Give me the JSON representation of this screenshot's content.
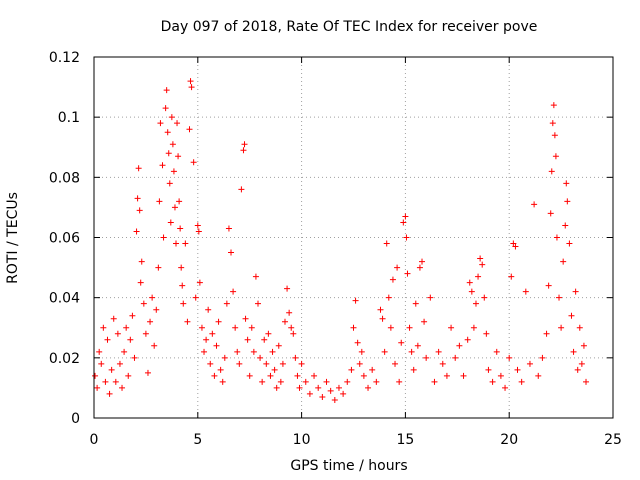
{
  "chart_data": {
    "type": "scatter",
    "title": "Day 097 of 2018, Rate Of TEC Index for receiver pove",
    "xlabel": "GPS time / hours",
    "ylabel": "ROTI / TECUs",
    "xlim": [
      0,
      25
    ],
    "ylim": [
      0,
      0.12
    ],
    "xticks": [
      "0",
      "5",
      "10",
      "15",
      "20",
      "25"
    ],
    "xtick_values": [
      0,
      5,
      10,
      15,
      20,
      25
    ],
    "yticks": [
      "0",
      "0.02",
      "0.04",
      "0.06",
      "0.08",
      "0.1",
      "0.12"
    ],
    "ytick_values": [
      0,
      0.02,
      0.04,
      0.06,
      0.08,
      0.1,
      0.12
    ],
    "grid": true,
    "marker": "+",
    "color": "#ff0000",
    "series": [
      {
        "points": [
          [
            0.05,
            0.014
          ],
          [
            0.15,
            0.01
          ],
          [
            0.25,
            0.022
          ],
          [
            0.35,
            0.018
          ],
          [
            0.45,
            0.03
          ],
          [
            0.55,
            0.012
          ],
          [
            0.65,
            0.026
          ],
          [
            0.75,
            0.008
          ],
          [
            0.85,
            0.016
          ],
          [
            0.95,
            0.033
          ],
          [
            1.05,
            0.012
          ],
          [
            1.15,
            0.028
          ],
          [
            1.25,
            0.018
          ],
          [
            1.35,
            0.01
          ],
          [
            1.45,
            0.022
          ],
          [
            1.55,
            0.03
          ],
          [
            1.65,
            0.014
          ],
          [
            1.75,
            0.026
          ],
          [
            1.85,
            0.034
          ],
          [
            1.95,
            0.02
          ],
          [
            2.05,
            0.062
          ],
          [
            2.1,
            0.073
          ],
          [
            2.15,
            0.083
          ],
          [
            2.2,
            0.069
          ],
          [
            2.25,
            0.045
          ],
          [
            2.3,
            0.052
          ],
          [
            2.4,
            0.038
          ],
          [
            2.5,
            0.028
          ],
          [
            2.6,
            0.015
          ],
          [
            2.7,
            0.032
          ],
          [
            2.8,
            0.04
          ],
          [
            2.9,
            0.024
          ],
          [
            3.0,
            0.036
          ],
          [
            3.1,
            0.05
          ],
          [
            3.15,
            0.072
          ],
          [
            3.2,
            0.098
          ],
          [
            3.3,
            0.084
          ],
          [
            3.35,
            0.06
          ],
          [
            3.45,
            0.103
          ],
          [
            3.5,
            0.109
          ],
          [
            3.55,
            0.095
          ],
          [
            3.6,
            0.088
          ],
          [
            3.65,
            0.078
          ],
          [
            3.7,
            0.065
          ],
          [
            3.75,
            0.1
          ],
          [
            3.8,
            0.091
          ],
          [
            3.85,
            0.082
          ],
          [
            3.9,
            0.07
          ],
          [
            3.95,
            0.058
          ],
          [
            4.0,
            0.098
          ],
          [
            4.05,
            0.087
          ],
          [
            4.1,
            0.072
          ],
          [
            4.15,
            0.063
          ],
          [
            4.2,
            0.05
          ],
          [
            4.25,
            0.044
          ],
          [
            4.3,
            0.038
          ],
          [
            4.4,
            0.058
          ],
          [
            4.5,
            0.032
          ],
          [
            4.6,
            0.096
          ],
          [
            4.65,
            0.112
          ],
          [
            4.7,
            0.11
          ],
          [
            4.8,
            0.085
          ],
          [
            4.9,
            0.04
          ],
          [
            5.0,
            0.064
          ],
          [
            5.05,
            0.062
          ],
          [
            5.1,
            0.045
          ],
          [
            5.2,
            0.03
          ],
          [
            5.3,
            0.022
          ],
          [
            5.4,
            0.026
          ],
          [
            5.5,
            0.036
          ],
          [
            5.6,
            0.018
          ],
          [
            5.7,
            0.028
          ],
          [
            5.8,
            0.014
          ],
          [
            5.9,
            0.024
          ],
          [
            6.0,
            0.032
          ],
          [
            6.1,
            0.016
          ],
          [
            6.2,
            0.012
          ],
          [
            6.3,
            0.02
          ],
          [
            6.4,
            0.038
          ],
          [
            6.5,
            0.063
          ],
          [
            6.6,
            0.055
          ],
          [
            6.7,
            0.042
          ],
          [
            6.8,
            0.03
          ],
          [
            6.9,
            0.022
          ],
          [
            7.0,
            0.018
          ],
          [
            7.1,
            0.076
          ],
          [
            7.2,
            0.089
          ],
          [
            7.25,
            0.091
          ],
          [
            7.3,
            0.033
          ],
          [
            7.4,
            0.026
          ],
          [
            7.5,
            0.014
          ],
          [
            7.6,
            0.03
          ],
          [
            7.7,
            0.022
          ],
          [
            7.8,
            0.047
          ],
          [
            7.9,
            0.038
          ],
          [
            8.0,
            0.02
          ],
          [
            8.1,
            0.012
          ],
          [
            8.2,
            0.026
          ],
          [
            8.3,
            0.018
          ],
          [
            8.4,
            0.028
          ],
          [
            8.5,
            0.014
          ],
          [
            8.6,
            0.022
          ],
          [
            8.7,
            0.016
          ],
          [
            8.8,
            0.01
          ],
          [
            8.9,
            0.024
          ],
          [
            9.0,
            0.012
          ],
          [
            9.1,
            0.018
          ],
          [
            9.2,
            0.032
          ],
          [
            9.3,
            0.043
          ],
          [
            9.4,
            0.035
          ],
          [
            9.5,
            0.03
          ],
          [
            9.6,
            0.028
          ],
          [
            9.7,
            0.02
          ],
          [
            9.8,
            0.014
          ],
          [
            9.9,
            0.01
          ],
          [
            10.0,
            0.018
          ],
          [
            10.2,
            0.012
          ],
          [
            10.4,
            0.008
          ],
          [
            10.6,
            0.014
          ],
          [
            10.8,
            0.01
          ],
          [
            11.0,
            0.007
          ],
          [
            11.2,
            0.012
          ],
          [
            11.4,
            0.009
          ],
          [
            11.6,
            0.006
          ],
          [
            11.8,
            0.01
          ],
          [
            12.0,
            0.008
          ],
          [
            12.2,
            0.012
          ],
          [
            12.4,
            0.016
          ],
          [
            12.5,
            0.03
          ],
          [
            12.6,
            0.039
          ],
          [
            12.7,
            0.025
          ],
          [
            12.8,
            0.018
          ],
          [
            12.9,
            0.022
          ],
          [
            13.0,
            0.014
          ],
          [
            13.2,
            0.01
          ],
          [
            13.4,
            0.016
          ],
          [
            13.6,
            0.012
          ],
          [
            13.8,
            0.036
          ],
          [
            13.9,
            0.033
          ],
          [
            14.0,
            0.022
          ],
          [
            14.1,
            0.058
          ],
          [
            14.2,
            0.04
          ],
          [
            14.3,
            0.03
          ],
          [
            14.4,
            0.046
          ],
          [
            14.5,
            0.018
          ],
          [
            14.6,
            0.05
          ],
          [
            14.7,
            0.012
          ],
          [
            14.8,
            0.025
          ],
          [
            14.9,
            0.065
          ],
          [
            15.0,
            0.067
          ],
          [
            15.05,
            0.06
          ],
          [
            15.1,
            0.048
          ],
          [
            15.2,
            0.03
          ],
          [
            15.3,
            0.022
          ],
          [
            15.4,
            0.016
          ],
          [
            15.5,
            0.038
          ],
          [
            15.6,
            0.024
          ],
          [
            15.7,
            0.05
          ],
          [
            15.8,
            0.052
          ],
          [
            15.9,
            0.032
          ],
          [
            16.0,
            0.02
          ],
          [
            16.2,
            0.04
          ],
          [
            16.4,
            0.012
          ],
          [
            16.6,
            0.022
          ],
          [
            16.8,
            0.018
          ],
          [
            17.0,
            0.014
          ],
          [
            17.2,
            0.03
          ],
          [
            17.4,
            0.02
          ],
          [
            17.6,
            0.024
          ],
          [
            17.8,
            0.014
          ],
          [
            18.0,
            0.026
          ],
          [
            18.1,
            0.045
          ],
          [
            18.2,
            0.042
          ],
          [
            18.3,
            0.03
          ],
          [
            18.4,
            0.038
          ],
          [
            18.5,
            0.047
          ],
          [
            18.6,
            0.053
          ],
          [
            18.7,
            0.051
          ],
          [
            18.8,
            0.04
          ],
          [
            18.9,
            0.028
          ],
          [
            19.0,
            0.016
          ],
          [
            19.2,
            0.012
          ],
          [
            19.4,
            0.022
          ],
          [
            19.6,
            0.014
          ],
          [
            19.8,
            0.01
          ],
          [
            20.0,
            0.02
          ],
          [
            20.1,
            0.047
          ],
          [
            20.2,
            0.058
          ],
          [
            20.3,
            0.057
          ],
          [
            20.4,
            0.016
          ],
          [
            20.6,
            0.012
          ],
          [
            20.8,
            0.042
          ],
          [
            21.0,
            0.018
          ],
          [
            21.2,
            0.071
          ],
          [
            21.4,
            0.014
          ],
          [
            21.6,
            0.02
          ],
          [
            21.8,
            0.028
          ],
          [
            21.9,
            0.044
          ],
          [
            22.0,
            0.068
          ],
          [
            22.05,
            0.082
          ],
          [
            22.1,
            0.098
          ],
          [
            22.15,
            0.104
          ],
          [
            22.2,
            0.094
          ],
          [
            22.25,
            0.087
          ],
          [
            22.3,
            0.06
          ],
          [
            22.4,
            0.04
          ],
          [
            22.5,
            0.03
          ],
          [
            22.6,
            0.052
          ],
          [
            22.7,
            0.064
          ],
          [
            22.75,
            0.078
          ],
          [
            22.8,
            0.072
          ],
          [
            22.9,
            0.058
          ],
          [
            23.0,
            0.034
          ],
          [
            23.1,
            0.022
          ],
          [
            23.2,
            0.042
          ],
          [
            23.3,
            0.016
          ],
          [
            23.4,
            0.03
          ],
          [
            23.5,
            0.018
          ],
          [
            23.6,
            0.024
          ],
          [
            23.7,
            0.012
          ]
        ]
      }
    ]
  }
}
